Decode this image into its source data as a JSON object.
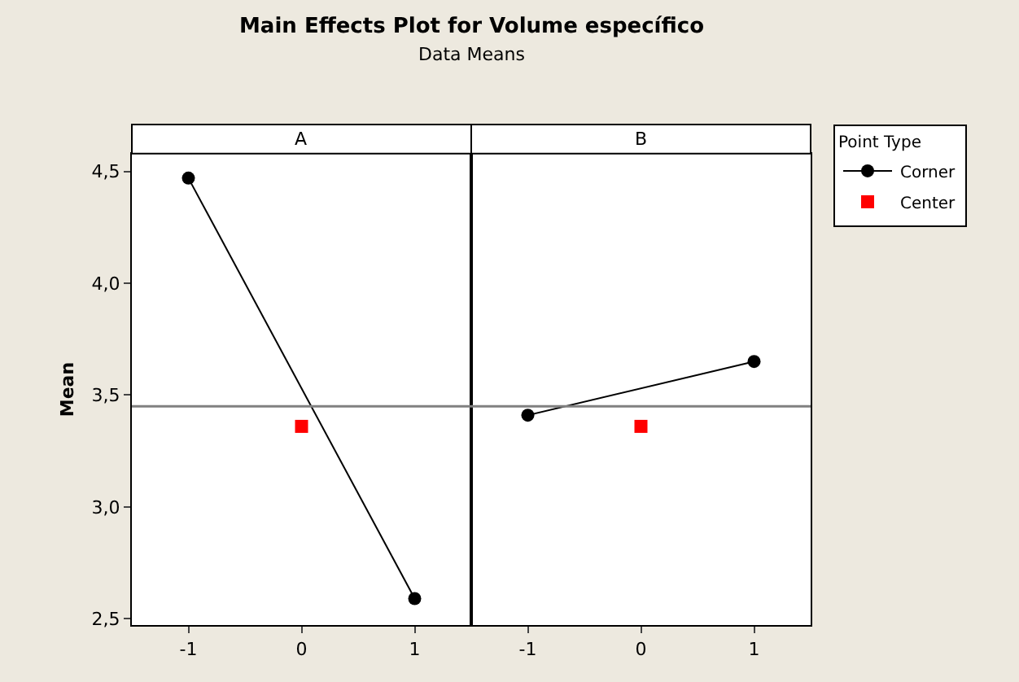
{
  "chart_data": [
    {
      "type": "line",
      "title": "Main Effects Plot for Volume específico",
      "subtitle": "Data Means",
      "xlabel": "A",
      "ylabel": "Mean",
      "xlim": [
        -1.5,
        1.5
      ],
      "xticks": [
        -1,
        0,
        1
      ],
      "legend_title": "Point Type",
      "ylim": [
        2.47,
        4.58
      ],
      "yticks": [
        {
          "value": 2.5,
          "label": "2,5"
        },
        {
          "value": 3.0,
          "label": "3,0"
        },
        {
          "value": 3.5,
          "label": "3,5"
        },
        {
          "value": 4.0,
          "label": "4,0"
        },
        {
          "value": 4.5,
          "label": "4,5"
        }
      ],
      "legend": "right",
      "series": [
        {
          "name": "Corner",
          "marker": "circle",
          "color": "#000000",
          "x": [
            -1,
            1
          ],
          "values": [
            4.47,
            2.59
          ]
        },
        {
          "name": "Center",
          "type": "scatter",
          "marker": "square",
          "color": "#ff0000",
          "x": [
            0
          ],
          "values": [
            3.36
          ]
        }
      ],
      "ref_lines": [
        {
          "axis": "y",
          "value": 3.45,
          "color": "#808080"
        }
      ]
    },
    {
      "type": "line",
      "xlabel": "B",
      "xlim": [
        -1.5,
        1.5
      ],
      "xticks": [
        -1,
        0,
        1
      ],
      "ylim": [
        2.47,
        4.58
      ],
      "tick_labels": "x",
      "series": [
        {
          "marker": "circle",
          "color": "#000000",
          "x": [
            -1,
            1
          ],
          "values": [
            3.41,
            3.65
          ]
        },
        {
          "type": "scatter",
          "marker": "square",
          "color": "#ff0000",
          "x": [
            0
          ],
          "values": [
            3.36
          ]
        }
      ],
      "ref_lines": [
        {
          "axis": "y",
          "value": 3.45,
          "color": "#808080"
        }
      ]
    }
  ]
}
